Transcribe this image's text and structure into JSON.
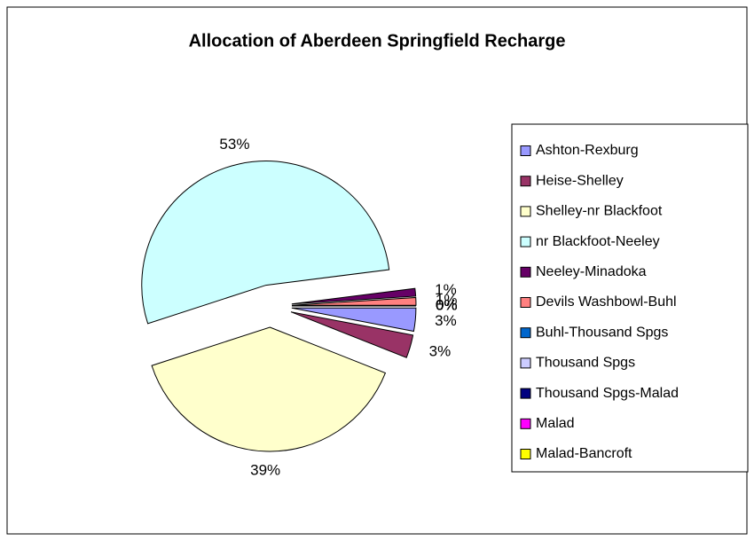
{
  "chart_data": {
    "type": "pie",
    "title": "Allocation of Aberdeen Springfield Recharge",
    "categories": [
      "Ashton-Rexburg",
      "Heise-Shelley",
      "Shelley-nr Blackfoot",
      "nr Blackfoot-Neeley",
      "Neeley-Minadoka",
      "Devils Washbowl-Buhl",
      "Buhl-Thousand Spgs",
      "Thousand Spgs",
      "Thousand Spgs-Malad",
      "Malad",
      "Malad-Bancroft"
    ],
    "values": [
      3,
      3,
      39,
      53,
      1,
      1,
      0,
      0,
      0,
      0,
      0
    ],
    "value_labels": [
      "3%",
      "3%",
      "39%",
      "53%",
      "1%",
      "1%",
      "0%",
      "0%",
      "0%",
      "0%",
      "0%"
    ],
    "colors": [
      "#9999ff",
      "#993366",
      "#ffffcc",
      "#ccffff",
      "#660066",
      "#ff8080",
      "#0066cc",
      "#ccccff",
      "#000080",
      "#ff00ff",
      "#ffff00"
    ],
    "legend": "right"
  }
}
